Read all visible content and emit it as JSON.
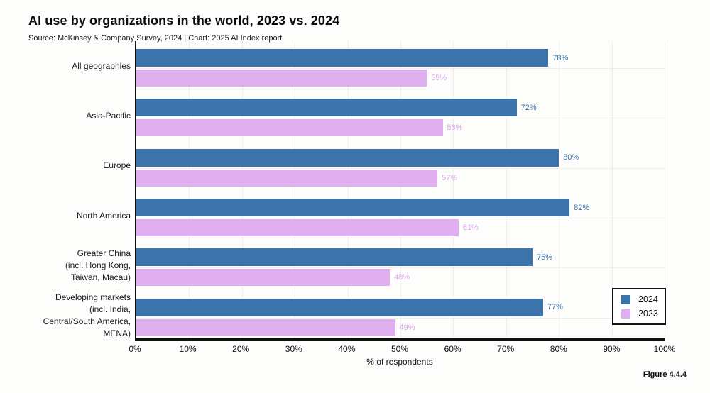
{
  "title": "AI use by organizations in the world, 2023 vs. 2024",
  "subtitle": "Source: McKinsey & Company Survey, 2024 | Chart: 2025 AI Index report",
  "figure_label": "Figure 4.4.4",
  "chart_data": {
    "type": "bar",
    "orientation": "horizontal",
    "title": "AI use by organizations in the world, 2023 vs. 2024",
    "xlabel": "% of respondents",
    "xlim": [
      0,
      100
    ],
    "xticks": [
      "0%",
      "10%",
      "20%",
      "30%",
      "40%",
      "50%",
      "60%",
      "70%",
      "80%",
      "90%",
      "100%"
    ],
    "grid": true,
    "legend_position": "lower right",
    "value_suffix": "%",
    "categories": [
      "All geographies",
      "Asia-Pacific",
      "Europe",
      "North America",
      "Greater China\n(incl. Hong Kong,\nTaiwan, Macau)",
      "Developing markets\n(incl. India,\nCentral/South America,\nMENA)"
    ],
    "series": [
      {
        "name": "2024",
        "color": "#3c73aa",
        "label_color": "#3c73aa",
        "values": [
          78,
          72,
          80,
          82,
          75,
          77
        ]
      },
      {
        "name": "2023",
        "color": "#e0aff0",
        "label_color": "#d9a6ea",
        "values": [
          55,
          58,
          57,
          61,
          48,
          49
        ]
      }
    ]
  }
}
